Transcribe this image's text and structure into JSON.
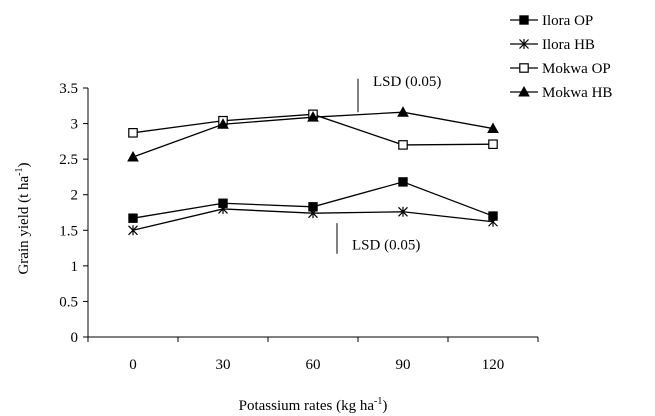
{
  "chart_data": {
    "type": "line",
    "title": "",
    "xlabel": {
      "main": "Potassium rates (kg ha",
      "sup": "-1",
      "end": ")"
    },
    "ylabel": {
      "main": "Grain yield (t ha",
      "sup": "-1",
      "end": ")"
    },
    "x": [
      0,
      30,
      60,
      90,
      120
    ],
    "x_tick_labels": [
      "0",
      "30",
      "60",
      "90",
      "120"
    ],
    "ylim": [
      0,
      3.5
    ],
    "y_ticks": [
      0,
      0.5,
      1,
      1.5,
      2,
      2.5,
      3,
      3.5
    ],
    "y_tick_labels": [
      "0",
      "0.5",
      "1",
      "1.5",
      "2",
      "2.5",
      "3",
      "3.5"
    ],
    "grid": false,
    "legend_position": "top-right",
    "series": [
      {
        "name": "Ilora OP",
        "marker": "filled-square",
        "values": [
          1.67,
          1.88,
          1.83,
          2.18,
          1.7
        ]
      },
      {
        "name": "Ilora HB",
        "marker": "asterisk",
        "values": [
          1.5,
          1.8,
          1.74,
          1.76,
          1.62
        ]
      },
      {
        "name": "Mokwa OP",
        "marker": "open-square",
        "values": [
          2.87,
          3.04,
          3.13,
          2.7,
          2.71
        ]
      },
      {
        "name": "Mokwa HB",
        "marker": "filled-triangle",
        "values": [
          2.53,
          2.99,
          3.09,
          3.16,
          2.93
        ]
      }
    ],
    "annotations": [
      {
        "text": "LSD (0.05)",
        "anchor_value": 3.16,
        "bar_x": 75,
        "bar_from": 3.16,
        "bar_to": 3.63
      },
      {
        "text": "LSD (0.05)",
        "anchor_value": 1.3,
        "bar_x": 68,
        "bar_from": 1.17,
        "bar_to": 1.6
      }
    ],
    "colors": {
      "line": "#000000",
      "background": "#ffffff"
    }
  }
}
